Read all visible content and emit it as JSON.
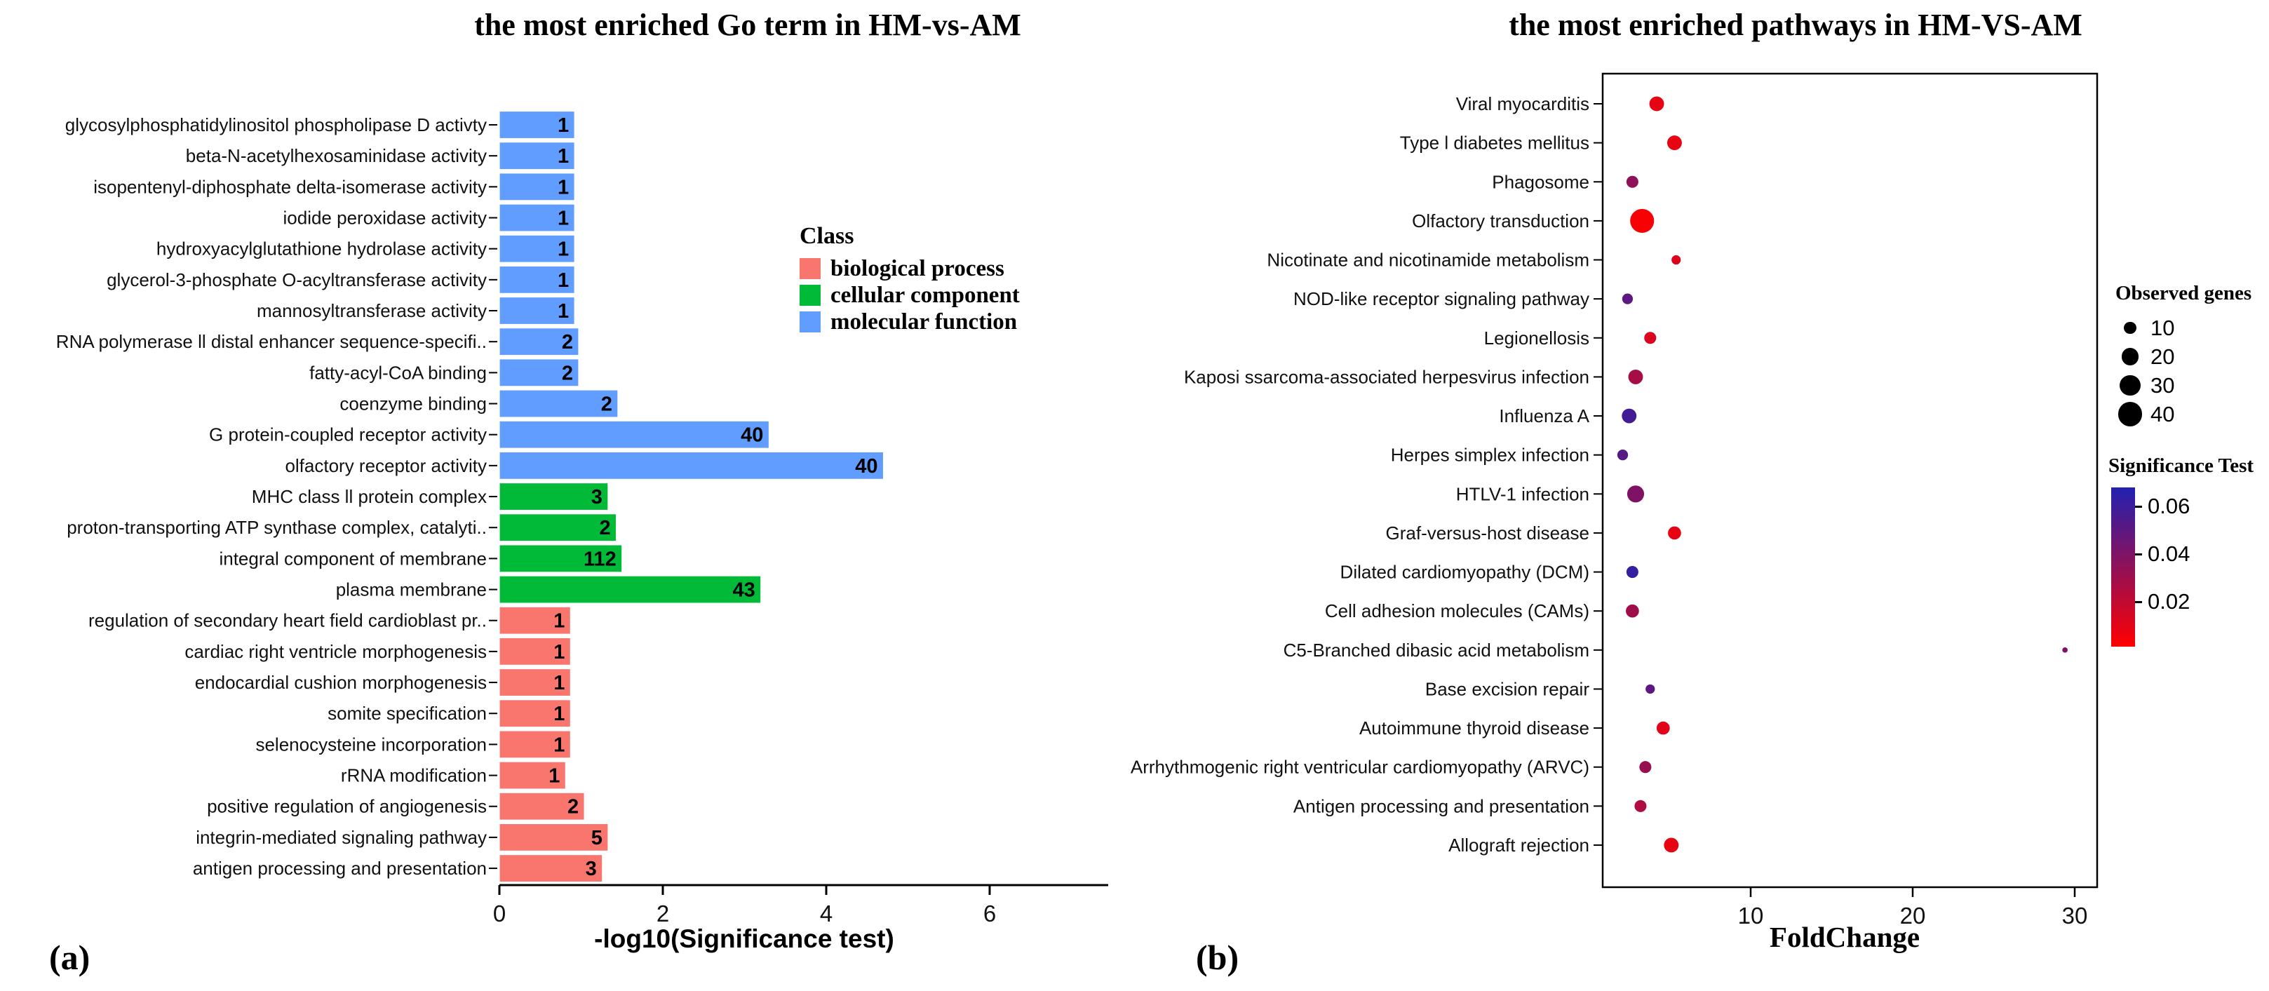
{
  "figure": {
    "background": "#ffffff"
  },
  "labels": {
    "panel_a": "(a)",
    "panel_b": "(b)"
  },
  "chart_data": [
    {
      "type": "bar",
      "orientation": "horizontal",
      "title": "the most enriched Go term in HM-vs-AM",
      "xlabel": "-log10(Significance test)",
      "xlim": [
        0,
        7.4
      ],
      "xticks": [
        0,
        2,
        4,
        6
      ],
      "grid": false,
      "legend_title": "Class",
      "legend_position": "right-inside",
      "classes": [
        {
          "name": "biological process",
          "color": "#F8766D"
        },
        {
          "name": "cellular component",
          "color": "#00BA38"
        },
        {
          "name": "molecular function",
          "color": "#619CFF"
        }
      ],
      "bars": [
        {
          "term": "glycosylphosphatidylinositol phospholipase D activty",
          "class": "molecular function",
          "count": 1,
          "value": 0.92
        },
        {
          "term": "beta-N-acetylhexosaminidase activity",
          "class": "molecular function",
          "count": 1,
          "value": 0.92
        },
        {
          "term": "isopentenyl-diphosphate delta-isomerase activity",
          "class": "molecular function",
          "count": 1,
          "value": 0.92
        },
        {
          "term": "iodide peroxidase activity",
          "class": "molecular function",
          "count": 1,
          "value": 0.92
        },
        {
          "term": "hydroxyacylglutathione hydrolase activity",
          "class": "molecular function",
          "count": 1,
          "value": 0.92
        },
        {
          "term": "glycerol-3-phosphate O-acyltransferase activity",
          "class": "molecular function",
          "count": 1,
          "value": 0.92
        },
        {
          "term": "mannosyltransferase activity",
          "class": "molecular function",
          "count": 1,
          "value": 0.92
        },
        {
          "term": "RNA polymerase ll distal enhancer sequence-specifi..",
          "class": "molecular function",
          "count": 2,
          "value": 0.97
        },
        {
          "term": "fatty-acyl-CoA binding",
          "class": "molecular function",
          "count": 2,
          "value": 0.97
        },
        {
          "term": "coenzyme binding",
          "class": "molecular function",
          "count": 2,
          "value": 1.45
        },
        {
          "term": "G protein-coupled receptor activity",
          "class": "molecular function",
          "count": 40,
          "value": 3.3
        },
        {
          "term": "olfactory receptor activity",
          "class": "molecular function",
          "count": 40,
          "value": 4.7
        },
        {
          "term": "MHC class ll protein complex",
          "class": "cellular component",
          "count": 3,
          "value": 1.33
        },
        {
          "term": "proton-transporting ATP synthase complex, catalyti..",
          "class": "cellular component",
          "count": 2,
          "value": 1.43
        },
        {
          "term": "integral component of membrane",
          "class": "cellular component",
          "count": 112,
          "value": 1.5
        },
        {
          "term": "plasma membrane",
          "class": "cellular component",
          "count": 43,
          "value": 3.2
        },
        {
          "term": "regulation of secondary heart field cardioblast pr..",
          "class": "biological process",
          "count": 1,
          "value": 0.87
        },
        {
          "term": "cardiac right ventricle morphogenesis",
          "class": "biological process",
          "count": 1,
          "value": 0.87
        },
        {
          "term": "endocardial cushion morphogenesis",
          "class": "biological process",
          "count": 1,
          "value": 0.87
        },
        {
          "term": "somite specification",
          "class": "biological process",
          "count": 1,
          "value": 0.87
        },
        {
          "term": "selenocysteine incorporation",
          "class": "biological process",
          "count": 1,
          "value": 0.87
        },
        {
          "term": "rRNA modification",
          "class": "biological process",
          "count": 1,
          "value": 0.81
        },
        {
          "term": "positive regulation of angiogenesis",
          "class": "biological process",
          "count": 2,
          "value": 1.04
        },
        {
          "term": "integrin-mediated signaling pathway",
          "class": "biological process",
          "count": 5,
          "value": 1.33
        },
        {
          "term": "antigen processing and presentation",
          "class": "biological process",
          "count": 3,
          "value": 1.26
        }
      ]
    },
    {
      "type": "scatter",
      "title": "the most enriched pathways in HM-VS-AM",
      "xlabel": "FoldChange",
      "xlim": [
        0.6,
        31.4
      ],
      "xticks": [
        10,
        20,
        30
      ],
      "grid": false,
      "size_legend": {
        "title": "Observed genes",
        "values": [
          10,
          20,
          30,
          40
        ]
      },
      "color_legend": {
        "title": "Significance Test",
        "ticks": [
          0.06,
          0.04,
          0.02
        ],
        "min": 0.001,
        "max": 0.068,
        "low_color": "#FF0000",
        "high_color": "#2121B0"
      },
      "points": [
        {
          "pathway": "Viral myocarditis",
          "fold_change": 4.2,
          "observed_genes": 15,
          "significance": 0.008
        },
        {
          "pathway": "Type l diabetes mellitus",
          "fold_change": 5.3,
          "observed_genes": 15,
          "significance": 0.008
        },
        {
          "pathway": "Phagosome",
          "fold_change": 2.7,
          "observed_genes": 10,
          "significance": 0.035
        },
        {
          "pathway": "Olfactory transduction",
          "fold_change": 3.3,
          "observed_genes": 40,
          "significance": 0.003
        },
        {
          "pathway": "Nicotinate and nicotinamide metabolism",
          "fold_change": 5.4,
          "observed_genes": 6,
          "significance": 0.012
        },
        {
          "pathway": "NOD-like receptor signaling pathway",
          "fold_change": 2.4,
          "observed_genes": 8,
          "significance": 0.05
        },
        {
          "pathway": "Legionellosis",
          "fold_change": 3.8,
          "observed_genes": 10,
          "significance": 0.012
        },
        {
          "pathway": "Kaposi ssarcoma-associated herpesvirus infection",
          "fold_change": 2.9,
          "observed_genes": 15,
          "significance": 0.028
        },
        {
          "pathway": "Influenza A",
          "fold_change": 2.5,
          "observed_genes": 15,
          "significance": 0.058
        },
        {
          "pathway": "Herpes simplex infection",
          "fold_change": 2.1,
          "observed_genes": 8,
          "significance": 0.052
        },
        {
          "pathway": "HTLV-1 infection",
          "fold_change": 2.9,
          "observed_genes": 20,
          "significance": 0.04
        },
        {
          "pathway": "Graf-versus-host disease",
          "fold_change": 5.3,
          "observed_genes": 12,
          "significance": 0.008
        },
        {
          "pathway": "Dilated cardiomyopathy (DCM)",
          "fold_change": 2.7,
          "observed_genes": 10,
          "significance": 0.062
        },
        {
          "pathway": "Cell adhesion molecules (CAMs)",
          "fold_change": 2.7,
          "observed_genes": 12,
          "significance": 0.03
        },
        {
          "pathway": "C5-Branched dibasic acid metabolism",
          "fold_change": 29.4,
          "observed_genes": 2,
          "significance": 0.04
        },
        {
          "pathway": "Base excision repair",
          "fold_change": 3.8,
          "observed_genes": 6,
          "significance": 0.05
        },
        {
          "pathway": "Autoimmune thyroid disease",
          "fold_change": 4.6,
          "observed_genes": 12,
          "significance": 0.01
        },
        {
          "pathway": "Arrhythmogenic right ventricular cardiomyopathy (ARVC)",
          "fold_change": 3.5,
          "observed_genes": 10,
          "significance": 0.032
        },
        {
          "pathway": "Antigen processing and presentation",
          "fold_change": 3.2,
          "observed_genes": 10,
          "significance": 0.025
        },
        {
          "pathway": "Allograft rejection",
          "fold_change": 5.1,
          "observed_genes": 15,
          "significance": 0.008
        }
      ]
    }
  ]
}
